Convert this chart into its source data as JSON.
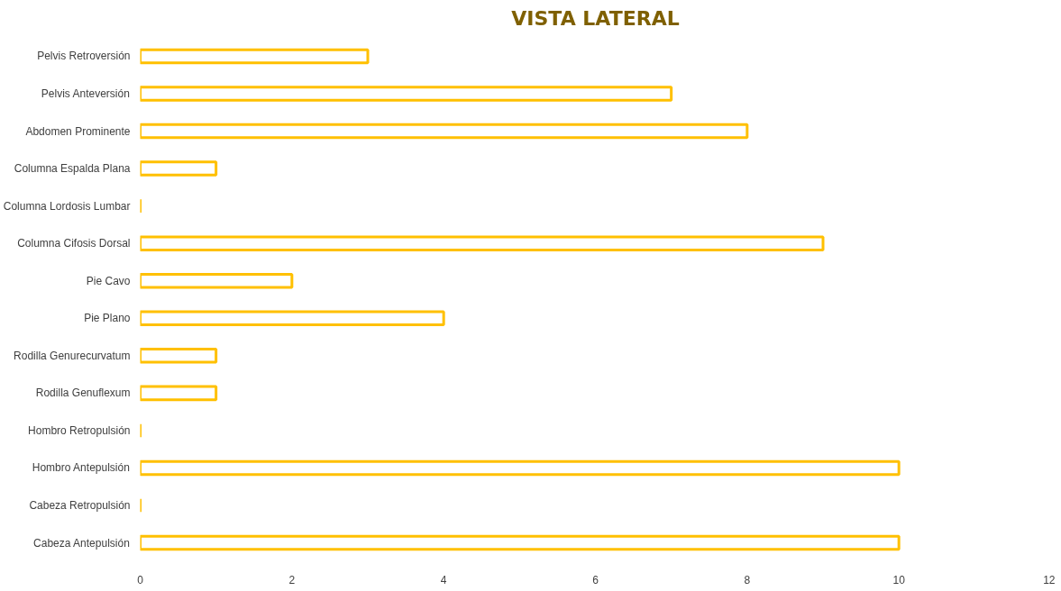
{
  "chart_data": {
    "type": "bar",
    "orientation": "horizontal",
    "title": "VISTA LATERAL",
    "categories": [
      "Pelvis Retroversión",
      "Pelvis Anteversión",
      "Abdomen Prominente",
      "Columna Espalda Plana",
      "Columna Lordosis Lumbar",
      "Columna Cifosis Dorsal",
      "Pie Cavo",
      "Pie Plano",
      "Rodilla Genurecurvatum",
      "Rodilla Genuflexum",
      "Hombro Retropulsión",
      "Hombro Antepulsión",
      "Cabeza Retropulsión",
      "Cabeza Antepulsión"
    ],
    "series": [
      {
        "color": "#ffc000",
        "values": [
          3,
          7,
          8,
          1,
          0,
          9,
          2,
          4,
          1,
          1,
          0,
          10,
          0,
          10
        ]
      }
    ],
    "xlim": [
      0,
      12
    ],
    "xticks": [
      0,
      2,
      4,
      6,
      8,
      10,
      12
    ]
  }
}
